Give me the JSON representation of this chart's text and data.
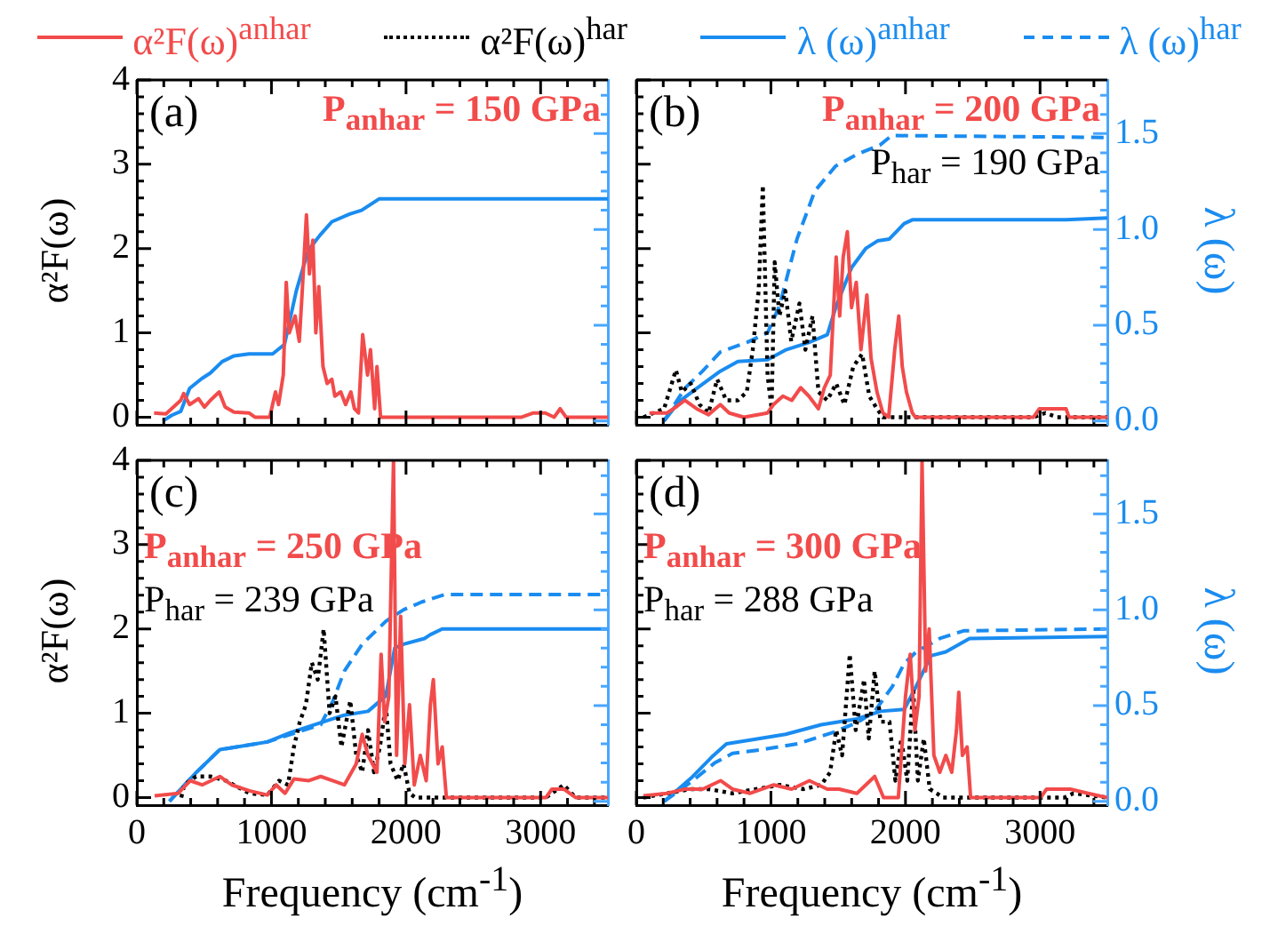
{
  "chart_data": [
    {
      "type": "line",
      "marker": "none",
      "tick_labels": "y",
      "ylabel": "α²F(ω)",
      "annotations": [
        "(a)",
        "P$_{anhar}$ = 150 GPa"
      ],
      "xlim": [
        0,
        3500
      ],
      "ylim": [
        -0.09,
        4
      ],
      "y2lim": [
        -0.02,
        1.78
      ],
      "yticks": [
        0,
        {
          "value": 0.2,
          "label": null
        },
        {
          "value": 0.4,
          "label": null
        },
        {
          "value": 0.6,
          "label": null
        },
        {
          "value": 0.8,
          "label": null
        },
        1,
        {
          "value": 1.2,
          "label": null
        },
        {
          "value": 1.4,
          "label": null
        },
        {
          "value": 1.6,
          "label": null
        },
        {
          "value": 1.8,
          "label": null
        },
        2,
        {
          "value": 2.2,
          "label": null
        },
        {
          "value": 2.4,
          "label": null
        },
        {
          "value": 2.6,
          "label": null
        },
        {
          "value": 2.8,
          "label": null
        },
        3,
        {
          "value": 3.2,
          "label": null
        },
        {
          "value": 3.4,
          "label": null
        },
        {
          "value": 3.6,
          "label": null
        },
        {
          "value": 3.8,
          "label": null
        },
        4
      ],
      "series": [
        {
          "color": "#f24b4b",
          "line_style": "solid",
          "x": [
            128,
            216,
            326,
            348,
            392,
            458,
            502,
            546,
            612,
            656,
            722,
            833,
            877,
            987,
            1030,
            1053,
            1088,
            1110,
            1132,
            1176,
            1207,
            1229,
            1260,
            1282,
            1308,
            1330,
            1352,
            1383,
            1414,
            1449,
            1471,
            1515,
            1551,
            1590,
            1617,
            1647,
            1678,
            1714,
            1736,
            1767,
            1784,
            1811,
            1846,
            2859,
            2947,
            3035,
            3101,
            3145,
            3189,
            3500
          ],
          "values": [
            0.05,
            0.04,
            0.2,
            0.28,
            0.15,
            0.22,
            0.12,
            0.2,
            0.3,
            0.12,
            0.06,
            0.05,
            0,
            0,
            0.3,
            0.15,
            0.5,
            1.6,
            1,
            1.2,
            0.9,
            1.5,
            2.4,
            1.7,
            2.1,
            1,
            1.55,
            0.6,
            0.4,
            0.45,
            0.25,
            0.3,
            0.15,
            0.3,
            0.1,
            0.05,
            0.98,
            0.5,
            0.8,
            0.1,
            0.6,
            0,
            0,
            0,
            0.05,
            0.05,
            0,
            0.1,
            0,
            0
          ]
        },
        {
          "color": "#1a8cf0",
          "line_style": "solid",
          "axis": "y2",
          "x": [
            194,
            260,
            326,
            392,
            480,
            546,
            634,
            722,
            833,
            1009,
            1097,
            1185,
            1273,
            1361,
            1449,
            1581,
            1670,
            1802,
            3500
          ],
          "values": [
            0,
            0.03,
            0.05,
            0.17,
            0.22,
            0.25,
            0.31,
            0.34,
            0.35,
            0.35,
            0.4,
            0.68,
            0.89,
            0.97,
            1.04,
            1.08,
            1.1,
            1.16,
            1.16
          ]
        }
      ]
    },
    {
      "type": "line",
      "marker": "none",
      "tick_labels": "y2",
      "legend": "top",
      "y2label": "λ (ω)",
      "annotations": [
        "(b)",
        "P$_{anhar}$ = 200 GPa",
        "P$_{har}$ = 190 GPa"
      ],
      "xlim": [
        0,
        3500
      ],
      "ylim": [
        -0.09,
        4
      ],
      "y2lim": [
        -0.02,
        1.78
      ],
      "y2ticks": [
        {
          "value": 0,
          "label": "0.0"
        },
        {
          "value": 0.1,
          "label": null
        },
        {
          "value": 0.2,
          "label": null
        },
        {
          "value": 0.3,
          "label": null
        },
        {
          "value": 0.4,
          "label": null
        },
        {
          "value": 0.5,
          "label": "0.5"
        },
        {
          "value": 0.6,
          "label": null
        },
        {
          "value": 0.7,
          "label": null
        },
        {
          "value": 0.8,
          "label": null
        },
        {
          "value": 0.9,
          "label": null
        },
        {
          "value": 1,
          "label": "1.0"
        },
        {
          "value": 1.1,
          "label": null
        },
        {
          "value": 1.2,
          "label": null
        },
        {
          "value": 1.3,
          "label": null
        },
        {
          "value": 1.4,
          "label": null
        },
        {
          "value": 1.5,
          "label": "1.5"
        },
        {
          "value": 1.6,
          "label": null
        },
        {
          "value": 1.7,
          "label": null
        }
      ],
      "series": [
        {
          "name": "α²F(ω)$^{anhar}$",
          "color": "#f24b4b",
          "line_style": "solid",
          "x": [
            97,
            228,
            294,
            360,
            448,
            536,
            624,
            690,
            799,
            975,
            1019,
            1089,
            1155,
            1221,
            1282,
            1353,
            1397,
            1441,
            1485,
            1511,
            1537,
            1568,
            1599,
            1634,
            1669,
            1713,
            1744,
            1788,
            1832,
            1875,
            1920,
            1950,
            1976,
            2007,
            2051,
            2073,
            2951,
            2995,
            3105,
            3193,
            3215,
            3500
          ],
          "values": [
            0.05,
            0.05,
            0.12,
            0.2,
            0.1,
            0.03,
            0.15,
            0.05,
            0,
            0.05,
            0.15,
            0.25,
            0.2,
            0.35,
            0.25,
            0.1,
            0.35,
            0.5,
            1.9,
            1.2,
            1.9,
            2.2,
            1.3,
            1.6,
            0.8,
            1.45,
            0.7,
            0.3,
            0.05,
            0,
            0.8,
            1.2,
            0.6,
            0.3,
            0.05,
            0,
            0,
            0.1,
            0.1,
            0.1,
            0,
            0
          ]
        },
        {
          "name": "α²F(ω)$^{har}$",
          "color": "#000000",
          "line_style": "dotted",
          "x": [
            53,
            206,
            294,
            338,
            404,
            470,
            536,
            601,
            668,
            755,
            821,
            865,
            909,
            940,
            975,
            1005,
            1028,
            1063,
            1107,
            1151,
            1212,
            1256,
            1309,
            1353,
            1419,
            1485,
            1546,
            1612,
            1678,
            1731,
            1788,
            1832,
            2951,
            3039,
            3127,
            3500
          ],
          "values": [
            0,
            0.1,
            0.56,
            0.3,
            0.4,
            0.15,
            0.05,
            0.45,
            0.2,
            0.2,
            0.3,
            0.8,
            1.5,
            2.75,
            0.5,
            0.1,
            1.84,
            1.2,
            1.5,
            0.9,
            1.35,
            0.8,
            1.2,
            0.3,
            0.2,
            0.4,
            0.15,
            0.6,
            0.75,
            0.25,
            0.1,
            0,
            0,
            0.05,
            0,
            0
          ]
        },
        {
          "name": "λ (ω)$^{anhar}$",
          "color": "#1a8cf0",
          "line_style": "solid",
          "axis": "y2",
          "x": [
            206,
            316,
            448,
            624,
            755,
            975,
            1107,
            1282,
            1419,
            1485,
            1599,
            1704,
            1792,
            1880,
            1990,
            2051,
            3193,
            3500
          ],
          "values": [
            0,
            0.1,
            0.17,
            0.26,
            0.31,
            0.32,
            0.37,
            0.41,
            0.45,
            0.6,
            0.8,
            0.9,
            0.94,
            0.95,
            1.03,
            1.05,
            1.05,
            1.06
          ]
        },
        {
          "name": "λ (ω)$^{har}$",
          "color": "#1a8cf0",
          "line_style": "dashed",
          "axis": "y2",
          "x": [
            206,
            360,
            492,
            624,
            821,
            975,
            1063,
            1194,
            1326,
            1480,
            1634,
            1810,
            1897,
            3500
          ],
          "values": [
            0,
            0.17,
            0.26,
            0.36,
            0.41,
            0.46,
            0.6,
            0.95,
            1.2,
            1.33,
            1.39,
            1.44,
            1.49,
            1.48
          ]
        }
      ]
    },
    {
      "type": "line",
      "marker": "none",
      "tick_labels": "x y",
      "ylabel": "α²F(ω)",
      "xlabel": "Frequency (cm$^{-1}$)",
      "annotations": [
        "(c)",
        "P$_{anhar}$ = 250 GPa",
        "P$_{har}$ = 239 GPa"
      ],
      "xlim": [
        0,
        3500
      ],
      "ylim": [
        -0.09,
        4
      ],
      "y2lim": [
        -0.02,
        1.78
      ],
      "xticks": [
        0,
        {
          "value": 200,
          "label": null
        },
        {
          "value": 400,
          "label": null
        },
        {
          "value": 600,
          "label": null
        },
        {
          "value": 800,
          "label": null
        },
        1000,
        {
          "value": 1200,
          "label": null
        },
        {
          "value": 1400,
          "label": null
        },
        {
          "value": 1600,
          "label": null
        },
        {
          "value": 1800,
          "label": null
        },
        2000,
        {
          "value": 2200,
          "label": null
        },
        {
          "value": 2400,
          "label": null
        },
        {
          "value": 2600,
          "label": null
        },
        {
          "value": 2800,
          "label": null
        },
        3000,
        {
          "value": 3200,
          "label": null
        },
        {
          "value": 3400,
          "label": null
        }
      ],
      "yticks": [
        0,
        {
          "value": 0.2,
          "label": null
        },
        {
          "value": 0.4,
          "label": null
        },
        {
          "value": 0.6,
          "label": null
        },
        {
          "value": 0.8,
          "label": null
        },
        1,
        {
          "value": 1.2,
          "label": null
        },
        {
          "value": 1.4,
          "label": null
        },
        {
          "value": 1.6,
          "label": null
        },
        {
          "value": 1.8,
          "label": null
        },
        2,
        {
          "value": 2.2,
          "label": null
        },
        {
          "value": 2.4,
          "label": null
        },
        {
          "value": 2.6,
          "label": null
        },
        {
          "value": 2.8,
          "label": null
        },
        3,
        {
          "value": 3.2,
          "label": null
        },
        {
          "value": 3.4,
          "label": null
        },
        {
          "value": 3.6,
          "label": null
        },
        {
          "value": 3.8,
          "label": null
        },
        4
      ],
      "series": [
        {
          "color": "#f24b4b",
          "line_style": "solid",
          "x": [
            132,
            308,
            396,
            485,
            617,
            705,
            837,
            969,
            1035,
            1101,
            1167,
            1278,
            1366,
            1454,
            1542,
            1630,
            1674,
            1718,
            1784,
            1815,
            1841,
            1872,
            1907,
            1930,
            1960,
            1991,
            2026,
            2061,
            2106,
            2150,
            2181,
            2203,
            2238,
            2269,
            2300,
            3040,
            3084,
            3172,
            3260,
            3500
          ],
          "values": [
            0.02,
            0.05,
            0.2,
            0.15,
            0.25,
            0.15,
            0.08,
            0.03,
            0.15,
            0.05,
            0.22,
            0.2,
            0.25,
            0.2,
            0.15,
            0.4,
            0.75,
            0.5,
            0.3,
            1.7,
            0.9,
            1.2,
            4,
            0.5,
            2.15,
            0.4,
            1.1,
            0.15,
            0.5,
            0.2,
            1.1,
            1.4,
            0.4,
            0.6,
            0,
            0,
            0.1,
            0.1,
            0,
            0
          ]
        },
        {
          "color": "#000000",
          "line_style": "dotted",
          "x": [
            330,
            352,
            440,
            551,
            661,
            837,
            969,
            1057,
            1123,
            1167,
            1211,
            1256,
            1300,
            1344,
            1388,
            1432,
            1476,
            1520,
            1586,
            1630,
            1674,
            1718,
            1762,
            1806,
            1850,
            1885,
            1938,
            1982,
            2026,
            2070,
            3040,
            3172,
            3260,
            3500
          ],
          "values": [
            0,
            0.15,
            0.25,
            0.25,
            0.2,
            0.05,
            0.03,
            0.2,
            0.15,
            0.6,
            0.9,
            1.1,
            1.6,
            1.4,
            2,
            1,
            1.2,
            0.6,
            1.15,
            0.5,
            0.3,
            0.8,
            0.3,
            0.6,
            1.1,
            0.4,
            0.2,
            0.4,
            0.05,
            0,
            0,
            0.15,
            0,
            0
          ]
        },
        {
          "color": "#1a8cf0",
          "line_style": "solid",
          "axis": "y2",
          "x": [
            242,
            440,
            617,
            793,
            969,
            1145,
            1322,
            1542,
            1718,
            1850,
            1916,
            1982,
            2137,
            2181,
            2269,
            3500
          ],
          "values": [
            0,
            0.15,
            0.27,
            0.29,
            0.31,
            0.36,
            0.4,
            0.45,
            0.47,
            0.55,
            0.8,
            0.82,
            0.85,
            0.87,
            0.9,
            0.9
          ]
        },
        {
          "color": "#1a8cf0",
          "line_style": "dashed",
          "axis": "y2",
          "x": [
            242,
            440,
            617,
            969,
            1189,
            1366,
            1454,
            1542,
            1674,
            1850,
            1982,
            2115,
            2291,
            3500
          ],
          "values": [
            0,
            0.15,
            0.27,
            0.31,
            0.36,
            0.4,
            0.52,
            0.68,
            0.82,
            0.94,
            1,
            1.04,
            1.08,
            1.08
          ]
        }
      ]
    },
    {
      "type": "line",
      "marker": "none",
      "tick_labels": "x y2",
      "y2label": "λ (ω)",
      "xlabel": "Frequency (cm$^{-1}$)",
      "annotations": [
        "(d)",
        "P$_{anhar}$ = 300 GPa",
        "P$_{har}$ = 288 GPa"
      ],
      "xlim": [
        0,
        3500
      ],
      "ylim": [
        -0.09,
        4
      ],
      "y2lim": [
        -0.02,
        1.78
      ],
      "y2ticks": [
        {
          "value": 0,
          "label": "0.0"
        },
        {
          "value": 0.1,
          "label": null
        },
        {
          "value": 0.2,
          "label": null
        },
        {
          "value": 0.3,
          "label": null
        },
        {
          "value": 0.4,
          "label": null
        },
        {
          "value": 0.5,
          "label": "0.5"
        },
        {
          "value": 0.6,
          "label": null
        },
        {
          "value": 0.7,
          "label": null
        },
        {
          "value": 0.8,
          "label": null
        },
        {
          "value": 0.9,
          "label": null
        },
        {
          "value": 1,
          "label": "1.0"
        },
        {
          "value": 1.1,
          "label": null
        },
        {
          "value": 1.2,
          "label": null
        },
        {
          "value": 1.3,
          "label": null
        },
        {
          "value": 1.4,
          "label": null
        },
        {
          "value": 1.5,
          "label": "1.5"
        },
        {
          "value": 1.6,
          "label": null
        },
        {
          "value": 1.7,
          "label": null
        }
      ],
      "xticks": [
        0,
        {
          "value": 200,
          "label": null
        },
        {
          "value": 400,
          "label": null
        },
        {
          "value": 600,
          "label": null
        },
        {
          "value": 800,
          "label": null
        },
        1000,
        {
          "value": 1200,
          "label": null
        },
        {
          "value": 1400,
          "label": null
        },
        {
          "value": 1600,
          "label": null
        },
        {
          "value": 1800,
          "label": null
        },
        2000,
        {
          "value": 2200,
          "label": null
        },
        {
          "value": 2400,
          "label": null
        },
        {
          "value": 2600,
          "label": null
        },
        {
          "value": 2800,
          "label": null
        },
        3000,
        {
          "value": 3200,
          "label": null
        },
        {
          "value": 3400,
          "label": null
        }
      ],
      "series": [
        {
          "color": "#f24b4b",
          "line_style": "solid",
          "x": [
            53,
            229,
            361,
            493,
            626,
            714,
            846,
            1022,
            1154,
            1286,
            1419,
            1507,
            1639,
            1771,
            1837,
            1947,
            2000,
            2035,
            2070,
            2101,
            2123,
            2150,
            2176,
            2211,
            2255,
            2300,
            2344,
            2379,
            2396,
            2423,
            2458,
            2484,
            3004,
            3048,
            3225,
            3357,
            3500
          ],
          "values": [
            0.02,
            0.05,
            0.1,
            0.1,
            0.2,
            0.1,
            0.05,
            0.15,
            0.1,
            0.2,
            0.1,
            0.1,
            0.05,
            0.25,
            0,
            0,
            1.2,
            1.7,
            0.8,
            1.2,
            4,
            1.5,
            2,
            0.5,
            0.3,
            0.5,
            0.3,
            0.8,
            1.25,
            0.5,
            0.6,
            0,
            0,
            0.1,
            0.1,
            0.05,
            0
          ]
        },
        {
          "color": "#000000",
          "line_style": "dotted",
          "x": [
            53,
            229,
            405,
            537,
            714,
            890,
            1066,
            1242,
            1374,
            1440,
            1485,
            1529,
            1586,
            1630,
            1692,
            1727,
            1771,
            1815,
            1881,
            1925,
            1969,
            2013,
            2057,
            2092,
            2136,
            2180,
            2233,
            2277,
            3181,
            3247,
            3500
          ],
          "values": [
            0,
            0.05,
            0.1,
            0.1,
            0.05,
            0.1,
            0.15,
            0.1,
            0.15,
            0.3,
            0.8,
            0.5,
            1.7,
            0.8,
            1.4,
            0.7,
            1.5,
            0.9,
            0.9,
            0.2,
            0.7,
            0.2,
            1.3,
            0.2,
            0.7,
            0.1,
            0.05,
            0,
            0,
            0.05,
            0
          ]
        },
        {
          "color": "#1a8cf0",
          "line_style": "solid",
          "axis": "y2",
          "x": [
            207,
            405,
            559,
            670,
            846,
            1110,
            1374,
            1639,
            1815,
            1991,
            2079,
            2189,
            2300,
            2476,
            3500
          ],
          "values": [
            0,
            0.12,
            0.23,
            0.3,
            0.32,
            0.35,
            0.4,
            0.43,
            0.47,
            0.48,
            0.6,
            0.76,
            0.78,
            0.85,
            0.86
          ]
        },
        {
          "color": "#1a8cf0",
          "line_style": "dashed",
          "axis": "y2",
          "x": [
            207,
            405,
            581,
            714,
            934,
            1198,
            1463,
            1639,
            1771,
            1903,
            1991,
            2079,
            2255,
            2432,
            3500
          ],
          "values": [
            0,
            0.1,
            0.2,
            0.25,
            0.27,
            0.3,
            0.36,
            0.41,
            0.47,
            0.6,
            0.72,
            0.78,
            0.85,
            0.89,
            0.9
          ]
        }
      ]
    }
  ]
}
